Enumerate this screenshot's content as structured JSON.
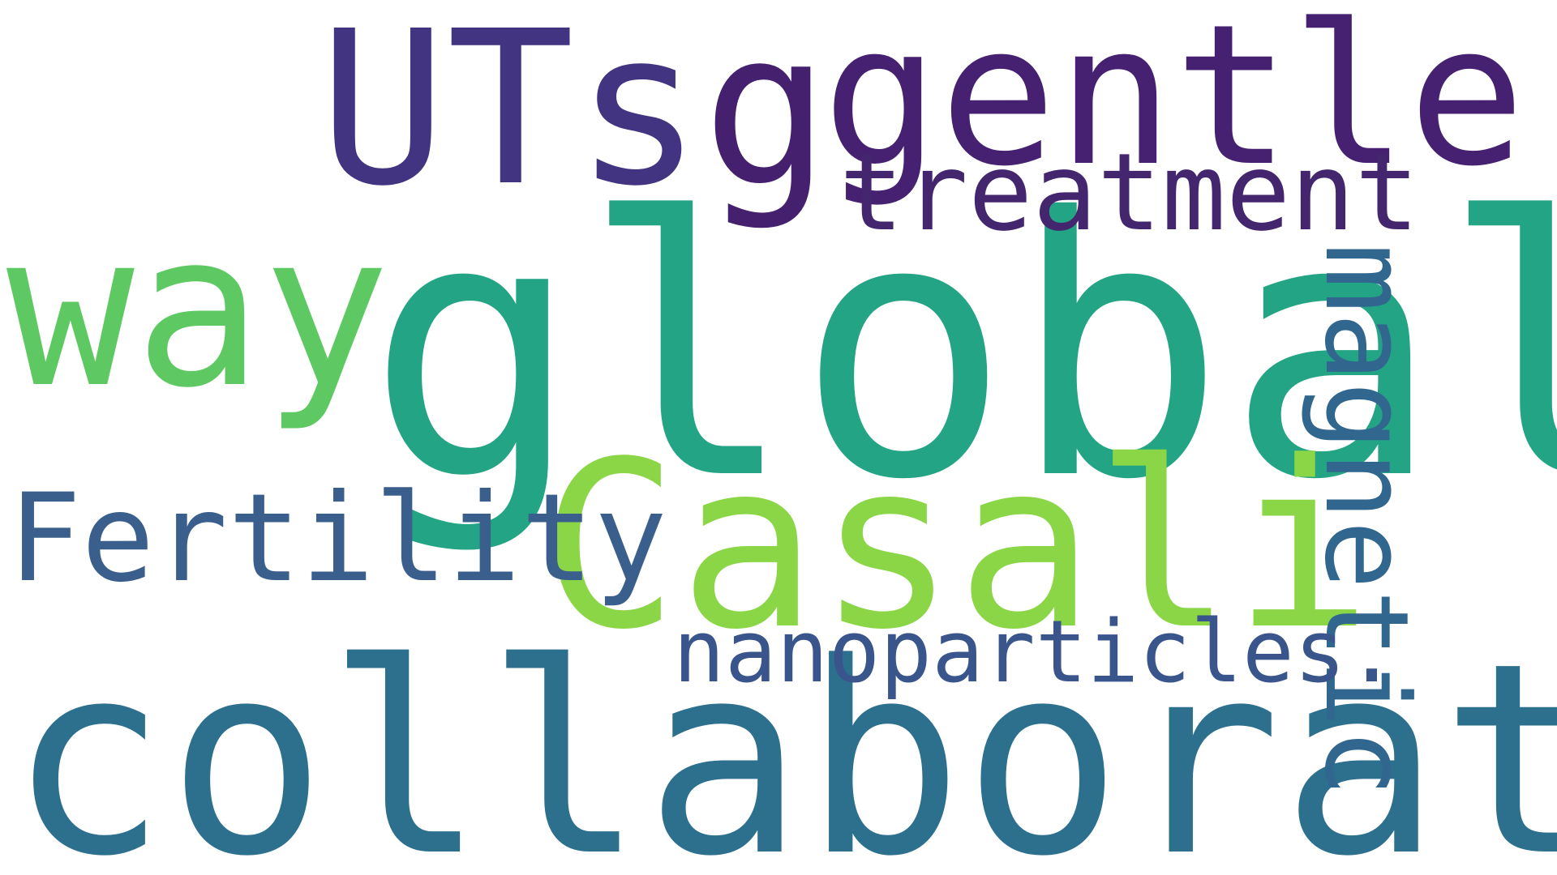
{
  "words": [
    {
      "key": "global",
      "text": "global",
      "color": "#23a484"
    },
    {
      "key": "collaboration",
      "text": "collaboration",
      "color": "#2d708e"
    },
    {
      "key": "casali",
      "text": "Casali",
      "color": "#8bd646"
    },
    {
      "key": "gentler",
      "text": "gentler",
      "color": "#462171"
    },
    {
      "key": "uts",
      "text": "UTs",
      "color": "#433482"
    },
    {
      "key": "g",
      "text": "g",
      "color": "#44206e"
    },
    {
      "key": "way",
      "text": "way",
      "color": "#5ec962"
    },
    {
      "key": "fertility",
      "text": "Fertility",
      "color": "#3b5f8c"
    },
    {
      "key": "treatment",
      "text": "treatment",
      "color": "#44266e"
    },
    {
      "key": "magnetic",
      "text": "magnetic",
      "color": "#31678e"
    },
    {
      "key": "nanoparticles",
      "text": "nanoparticles.",
      "color": "#39558c"
    }
  ]
}
